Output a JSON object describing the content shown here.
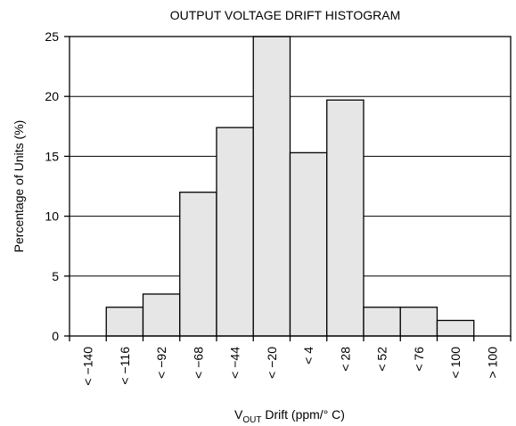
{
  "chart_data": {
    "type": "bar",
    "title": "OUTPUT VOLTAGE DRIFT HISTOGRAM",
    "xlabel_main": "V",
    "xlabel_sub": "OUT",
    "xlabel_rest": " Drift (ppm/° C)",
    "ylabel": "Percentage of Units (%)",
    "ylim": [
      0,
      25
    ],
    "yticks": [
      0,
      5,
      10,
      15,
      20,
      25
    ],
    "grid": true,
    "categories": [
      "< −140",
      "< −116",
      "< −92",
      "< −68",
      "< −44",
      "< −20",
      "< 4",
      "< 28",
      "< 52",
      "< 76",
      "< 100",
      "> 100"
    ],
    "values": [
      0,
      2.4,
      3.5,
      12.0,
      17.4,
      25.0,
      15.3,
      19.7,
      2.4,
      2.4,
      1.3,
      0
    ],
    "bar_color": "#e6e6e6"
  }
}
